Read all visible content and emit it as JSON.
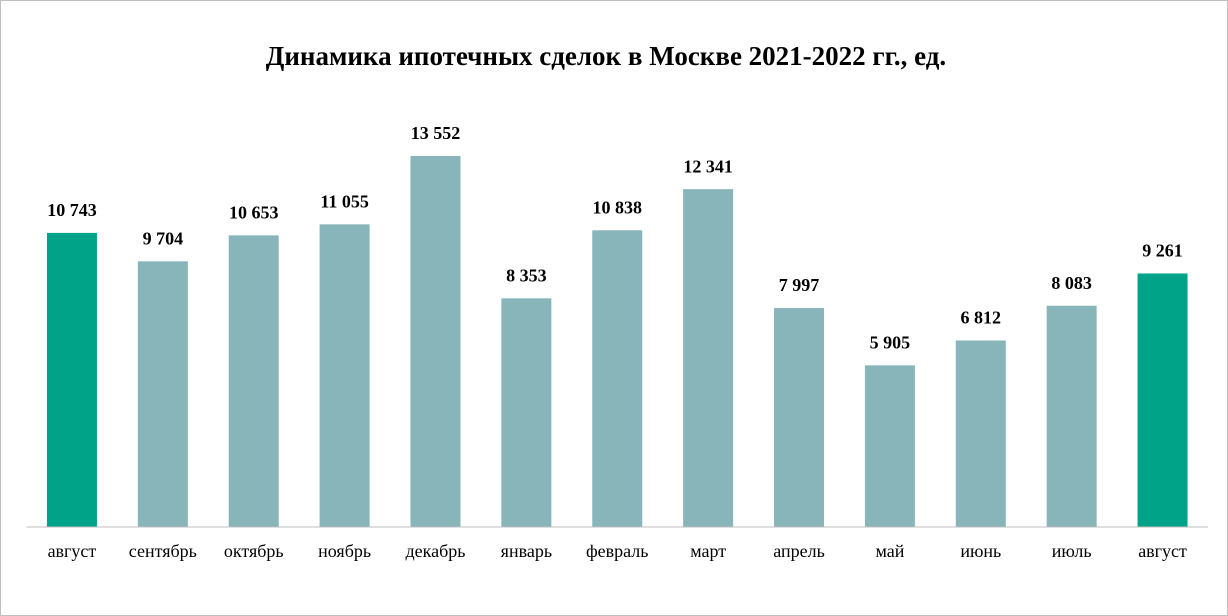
{
  "chart_data": {
    "type": "bar",
    "title": "Динамика ипотечных сделок в Москве 2021-2022 гг., ед.",
    "categories": [
      "август",
      "сентябрь",
      "октябрь",
      "ноябрь",
      "декабрь",
      "январь",
      "февраль",
      "март",
      "апрель",
      "май",
      "июнь",
      "июль",
      "август"
    ],
    "values": [
      10743,
      9704,
      10653,
      11055,
      13552,
      8353,
      10838,
      12341,
      7997,
      5905,
      6812,
      8083,
      9261
    ],
    "value_labels": [
      "10 743",
      "9 704",
      "10 653",
      "11 055",
      "13 552",
      "8 353",
      "10 838",
      "12 341",
      "7 997",
      "5 905",
      "6 812",
      "8 083",
      "9 261"
    ],
    "colors": [
      "#00a388",
      "#87b5ba",
      "#87b5ba",
      "#87b5ba",
      "#87b5ba",
      "#87b5ba",
      "#87b5ba",
      "#87b5ba",
      "#87b5ba",
      "#87b5ba",
      "#87b5ba",
      "#87b5ba",
      "#00a388"
    ]
  }
}
